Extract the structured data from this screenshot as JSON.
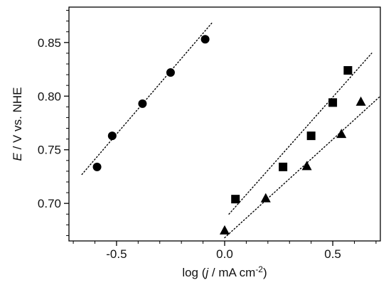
{
  "chart_data": {
    "type": "scatter",
    "xlabel": {
      "prefix": "log (",
      "var": "j",
      "mid": " / mA cm",
      "sup": "-2",
      "suffix": ")"
    },
    "ylabel": {
      "var": "E",
      "rest": " / V vs. NHE"
    },
    "xlim": [
      -0.72,
      0.72
    ],
    "ylim": [
      0.665,
      0.883
    ],
    "xticks": [
      -0.5,
      0.0,
      0.5
    ],
    "xtick_labels": [
      "-0.5",
      "0.0",
      "0.5"
    ],
    "yticks": [
      0.7,
      0.75,
      0.8,
      0.85
    ],
    "ytick_labels": [
      "0.70",
      "0.75",
      "0.80",
      "0.85"
    ],
    "grid": false,
    "series": [
      {
        "marker": "circle",
        "color": "#000000",
        "points": [
          {
            "x": -0.59,
            "y": 0.734
          },
          {
            "x": -0.52,
            "y": 0.763
          },
          {
            "x": -0.38,
            "y": 0.793
          },
          {
            "x": -0.25,
            "y": 0.822
          },
          {
            "x": -0.09,
            "y": 0.853
          }
        ],
        "fit_line": {
          "x": [
            -0.66,
            -0.06
          ],
          "y": [
            0.727,
            0.868
          ]
        }
      },
      {
        "marker": "square",
        "color": "#000000",
        "points": [
          {
            "x": 0.05,
            "y": 0.704
          },
          {
            "x": 0.27,
            "y": 0.734
          },
          {
            "x": 0.4,
            "y": 0.763
          },
          {
            "x": 0.5,
            "y": 0.794
          },
          {
            "x": 0.57,
            "y": 0.824
          }
        ],
        "fit_line": {
          "x": [
            0.02,
            0.68
          ],
          "y": [
            0.69,
            0.84
          ]
        }
      },
      {
        "marker": "triangle",
        "color": "#000000",
        "points": [
          {
            "x": 0.0,
            "y": 0.675
          },
          {
            "x": 0.19,
            "y": 0.705
          },
          {
            "x": 0.38,
            "y": 0.735
          },
          {
            "x": 0.54,
            "y": 0.765
          },
          {
            "x": 0.63,
            "y": 0.795
          }
        ],
        "fit_line": {
          "x": [
            0.0,
            0.72
          ],
          "y": [
            0.668,
            0.8
          ]
        }
      }
    ]
  }
}
